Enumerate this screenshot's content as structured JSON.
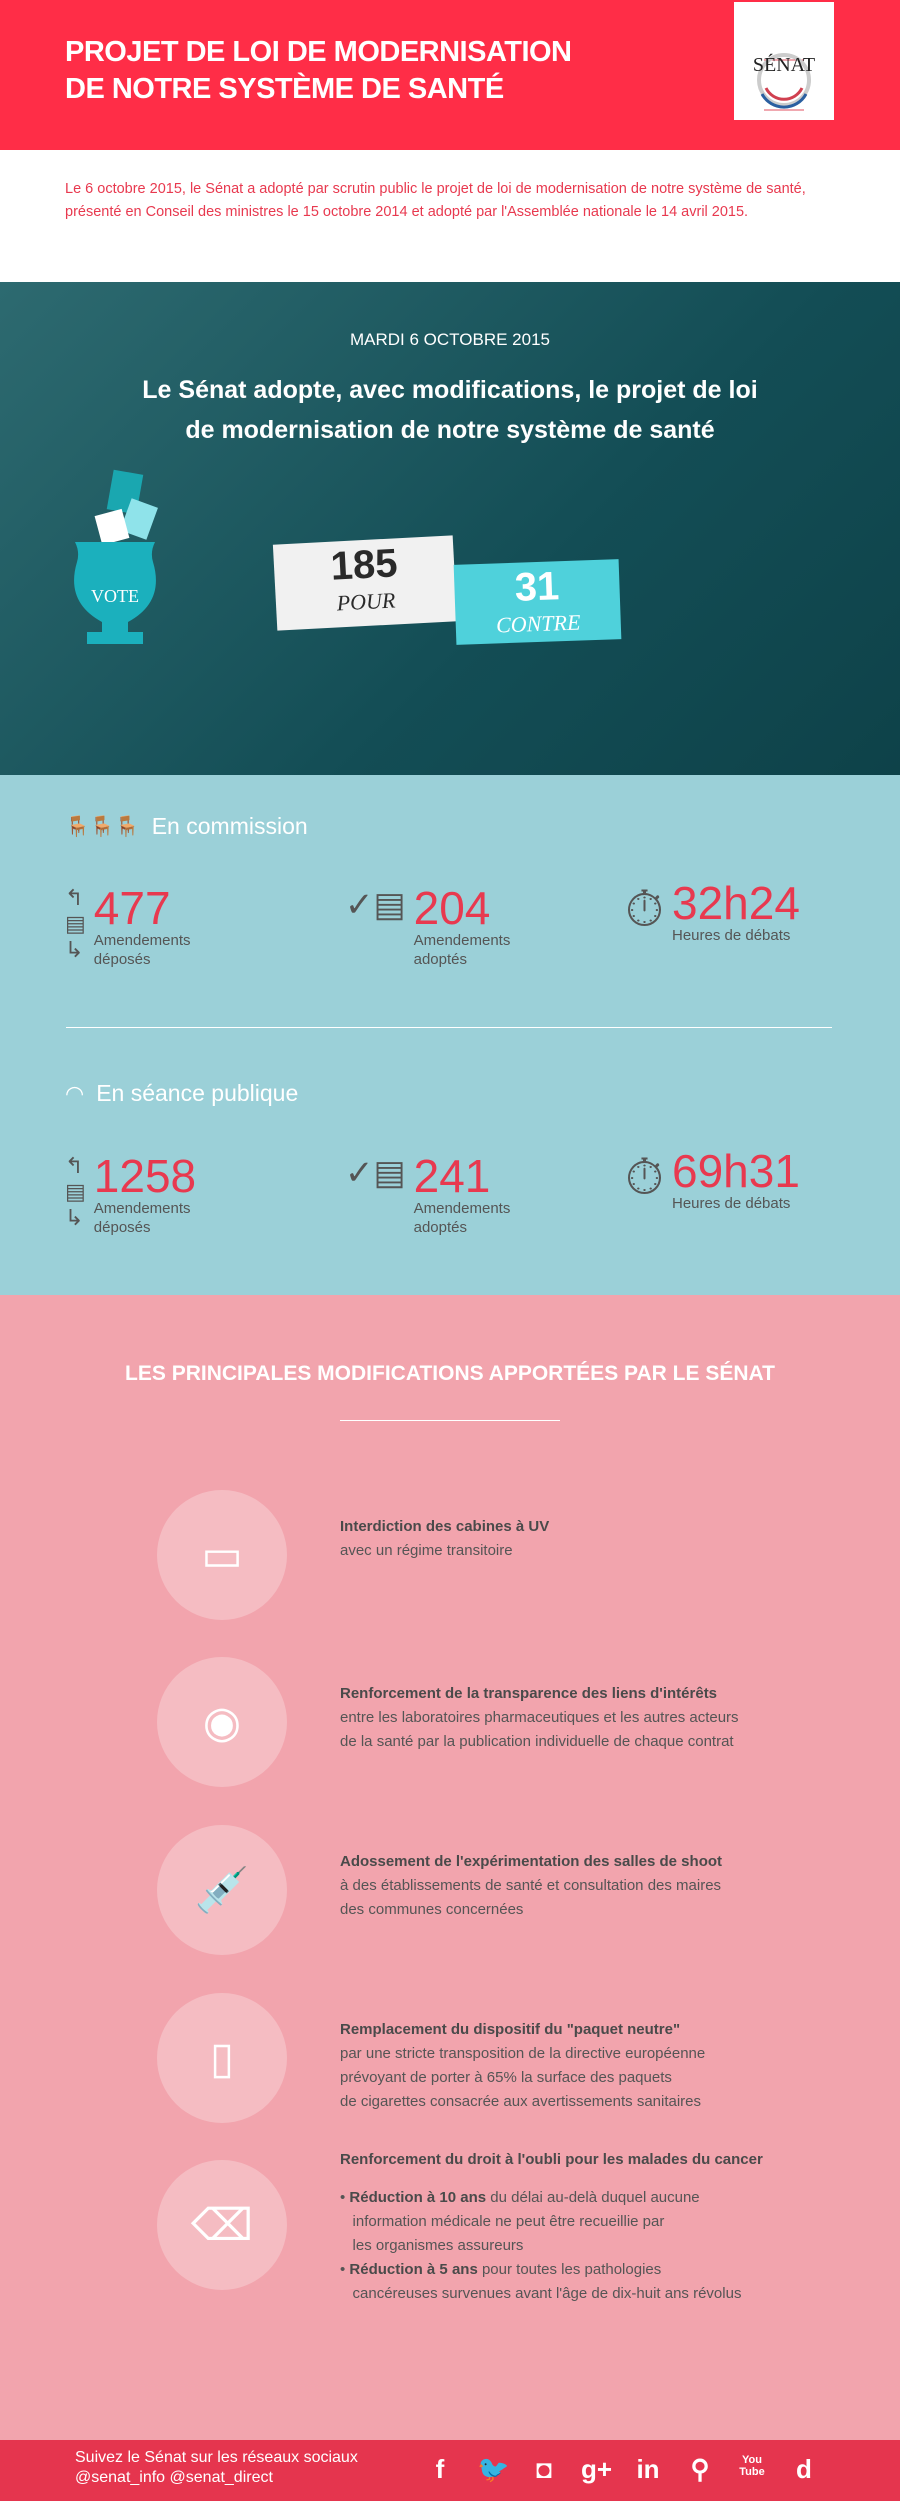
{
  "header": {
    "title_line1": "PROJET DE LOI DE MODERNISATION",
    "title_line2": "DE NOTRE SYSTÈME DE SANTÉ",
    "logo_text": "SÉNAT"
  },
  "intro": "Le 6 octobre 2015, le Sénat a adopté par scrutin public le projet de loi de modernisation de notre système de santé, présenté en Conseil des ministres le 15 octobre 2014 et adopté par l'Assemblée nationale le 14 avril 2015.",
  "vote": {
    "date": "MARDI 6 OCTOBRE 2015",
    "headline_line1": "Le Sénat  adopte, avec modifications, le projet de loi",
    "headline_line2": "de modernisation de notre système de santé",
    "urn_label": "VOTE",
    "pour": "185",
    "pour_label": "POUR",
    "contre": "31",
    "contre_label": "CONTRE"
  },
  "commission": {
    "title": "En commission",
    "stats": [
      {
        "value": "477",
        "label1": "Amendements",
        "label2": "déposés"
      },
      {
        "value": "204",
        "label1": "Amendements",
        "label2": "adoptés"
      },
      {
        "value": "32h24",
        "label1": "Heures de débats",
        "label2": ""
      }
    ]
  },
  "seance": {
    "title": "En séance publique",
    "stats": [
      {
        "value": "1258",
        "label1": "Amendements",
        "label2": "déposés"
      },
      {
        "value": "241",
        "label1": "Amendements",
        "label2": "adoptés"
      },
      {
        "value": "69h31",
        "label1": "Heures de débats",
        "label2": ""
      }
    ]
  },
  "mods": {
    "title": "LES PRINCIPALES MODIFICATIONS APPORTÉES PAR LE SÉNAT",
    "items": [
      {
        "icon": "tanning-bed-icon",
        "bold": "Interdiction des cabines à UV",
        "lines": [
          "avec un régime transitoire"
        ]
      },
      {
        "icon": "eye-icon",
        "bold": "Renforcement de la transparence des liens d'intérêts",
        "lines": [
          "entre les laboratoires pharmaceutiques et les autres acteurs",
          "de la santé par la publication individuelle de chaque contrat"
        ]
      },
      {
        "icon": "syringe-icon",
        "bold": "Adossement de l'expérimentation des salles de shoot",
        "lines": [
          "à des établissements de santé et consultation des maires",
          "des communes concernées"
        ]
      },
      {
        "icon": "cigarette-pack-icon",
        "bold": "Remplacement du dispositif du \"paquet neutre\"",
        "lines": [
          "par une stricte transposition de la directive européenne",
          "prévoyant de porter à 65% la surface des paquets",
          "de cigarettes consacrée aux avertissements sanitaires"
        ]
      }
    ],
    "last": {
      "icon": "eraser-icon",
      "bold": "Renforcement du droit à l'oubli pour les malades du cancer",
      "b1_bold": "Réduction à 10 ans",
      "b1_rest": " du délai au-delà duquel aucune",
      "b1_l2": "information médicale ne peut être recueillie par",
      "b1_l3": "les organismes assureurs",
      "b2_bold": "Réduction à 5 ans",
      "b2_rest": " pour toutes les pathologies",
      "b2_l2": "cancéreuses survenues avant l'âge de dix-huit ans révolus"
    }
  },
  "footer": {
    "line1": "Suivez le Sénat sur les réseaux sociaux",
    "line2": "@senat_info  @senat_direct",
    "social": [
      "f",
      "🐦",
      "◘",
      "g+",
      "in",
      "⚲",
      "You Tube",
      "d"
    ]
  },
  "colors": {
    "red": "#ff2d47",
    "blue": "#9bd0d8",
    "pink": "#f2a4ad",
    "teal": "#4fd1db"
  }
}
